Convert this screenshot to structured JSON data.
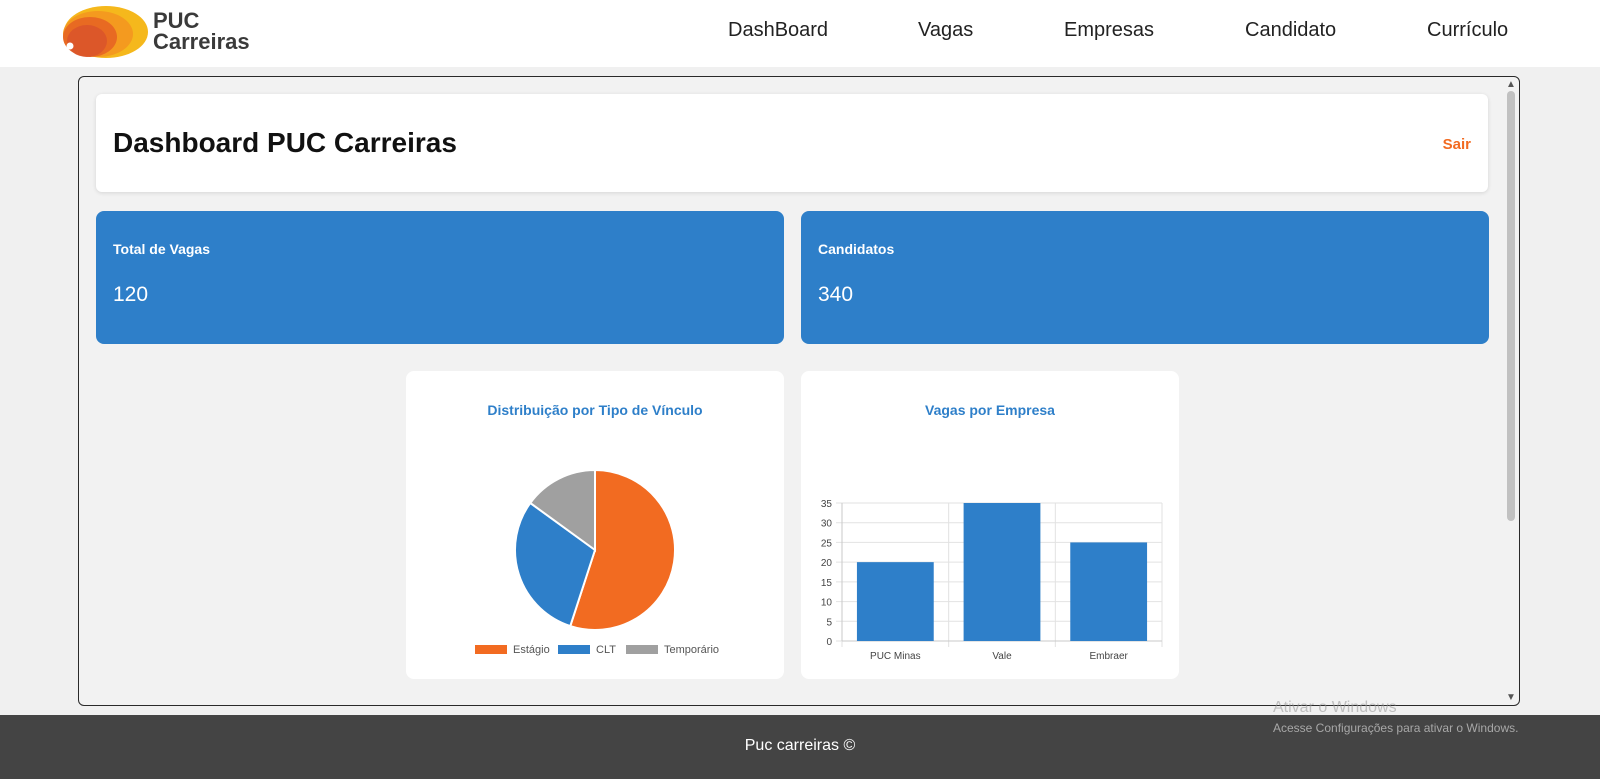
{
  "brand": {
    "line1": "PUC",
    "line2": "Carreiras",
    "colors": {
      "orange": "#f26b21",
      "yellow": "#f5b81c"
    }
  },
  "nav": {
    "items": [
      "DashBoard",
      "Vagas",
      "Empresas",
      "Candidato",
      "Currículo"
    ]
  },
  "page": {
    "title": "Dashboard PUC Carreiras",
    "logout_label": "Sair"
  },
  "stats": [
    {
      "label": "Total de Vagas",
      "value": "120"
    },
    {
      "label": "Candidatos",
      "value": "340"
    }
  ],
  "charts": {
    "pie_title": "Distribuição por Tipo de Vínculo",
    "bar_title": "Vagas por Empresa"
  },
  "chart_data": [
    {
      "type": "pie",
      "title": "Distribuição por Tipo de Vínculo",
      "categories": [
        "Estágio",
        "CLT",
        "Temporário"
      ],
      "values": [
        55,
        30,
        15
      ],
      "colors": [
        "#f26b21",
        "#2e7fc9",
        "#a0a0a0"
      ],
      "legend": "bottom"
    },
    {
      "type": "bar",
      "title": "Vagas por Empresa",
      "categories": [
        "PUC Minas",
        "Vale",
        "Embraer"
      ],
      "values": [
        20,
        35,
        25
      ],
      "ylim": [
        0,
        35
      ],
      "yticks": [
        0,
        5,
        10,
        15,
        20,
        25,
        30,
        35
      ],
      "color": "#2e7fc9",
      "grid": true
    }
  ],
  "footer": {
    "text": "Puc carreiras ©"
  },
  "os_watermark": {
    "title": "Ativar o Windows",
    "subtitle": "Acesse Configurações para ativar o Windows."
  },
  "icons": {
    "scroll_up": "chevron-up-icon",
    "scroll_down": "chevron-down-icon"
  }
}
